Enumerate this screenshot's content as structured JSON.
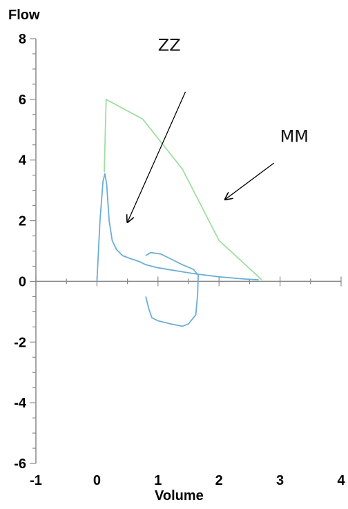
{
  "chart_data": {
    "type": "line",
    "xlabel": "Volume",
    "ylabel": "Flow",
    "xlim": [
      -1,
      4
    ],
    "ylim": [
      -6,
      8
    ],
    "x_ticks": [
      -1,
      0,
      1,
      2,
      3,
      4
    ],
    "y_ticks": [
      -6,
      -4,
      -2,
      0,
      2,
      4,
      6,
      8
    ],
    "grid": false,
    "colors": {
      "green_curve": "#9fdf9f",
      "blue_curve": "#6aaed6",
      "axis": "#888888",
      "arrows": "#000000"
    },
    "series": [
      {
        "color": "#9fdf9f",
        "points": [
          [
            0.12,
            3.6
          ],
          [
            0.15,
            6.0
          ],
          [
            0.75,
            5.35
          ],
          [
            1.4,
            3.7
          ],
          [
            2.0,
            1.35
          ],
          [
            2.7,
            0.05
          ]
        ]
      },
      {
        "color": "#6aaed6",
        "points": [
          [
            0.0,
            0.0
          ],
          [
            0.05,
            2.0
          ],
          [
            0.1,
            3.3
          ],
          [
            0.13,
            3.55
          ],
          [
            0.16,
            3.2
          ],
          [
            0.2,
            2.0
          ],
          [
            0.25,
            1.35
          ],
          [
            0.32,
            1.05
          ],
          [
            0.42,
            0.85
          ],
          [
            0.55,
            0.75
          ],
          [
            0.7,
            0.65
          ],
          [
            0.8,
            0.55
          ],
          [
            1.0,
            0.45
          ],
          [
            1.3,
            0.35
          ],
          [
            1.6,
            0.25
          ],
          [
            2.0,
            0.15
          ],
          [
            2.4,
            0.08
          ],
          [
            2.65,
            0.05
          ]
        ]
      },
      {
        "color": "#6aaed6",
        "points": [
          [
            0.8,
            0.85
          ],
          [
            0.88,
            0.95
          ],
          [
            1.05,
            0.9
          ],
          [
            1.2,
            0.75
          ],
          [
            1.4,
            0.55
          ],
          [
            1.58,
            0.4
          ],
          [
            1.66,
            0.2
          ],
          [
            1.65,
            -0.4
          ],
          [
            1.62,
            -1.1
          ],
          [
            1.5,
            -1.4
          ],
          [
            1.4,
            -1.48
          ],
          [
            1.2,
            -1.4
          ],
          [
            1.0,
            -1.3
          ],
          [
            0.9,
            -1.2
          ],
          [
            0.85,
            -0.9
          ],
          [
            0.8,
            -0.5
          ]
        ]
      }
    ],
    "annotations": [
      {
        "text": "ZZ",
        "x": 1.0,
        "y": 7.6,
        "arrow_from": [
          1.45,
          6.25
        ],
        "arrow_to": [
          0.5,
          1.95
        ]
      },
      {
        "text": "MM",
        "x": 3.0,
        "y": 4.6,
        "arrow_from": [
          2.9,
          3.9
        ],
        "arrow_to": [
          2.1,
          2.7
        ]
      }
    ]
  }
}
